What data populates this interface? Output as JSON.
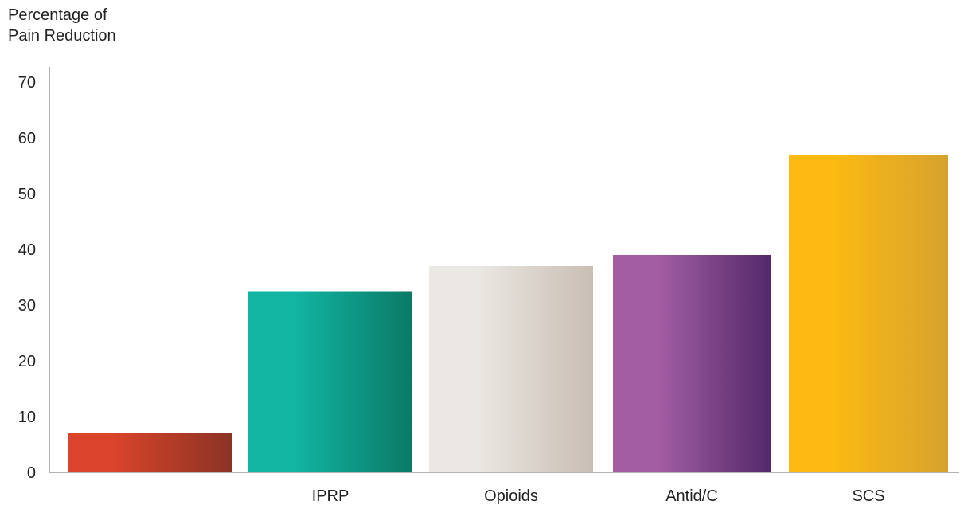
{
  "chart_data": {
    "type": "bar",
    "title": "",
    "ylabel": "Percentage of\nPain Reduction",
    "xlabel": "",
    "categories": [
      "",
      "IPRP",
      "Opioids",
      "Antid/C",
      "SCS"
    ],
    "values": [
      7,
      32.5,
      37,
      39,
      57
    ],
    "ylim": [
      0,
      70
    ],
    "yticks": [
      0,
      10,
      20,
      30,
      40,
      50,
      60,
      70
    ],
    "grid": false,
    "legend": "none",
    "bar_gradients": [
      [
        "#d9442a",
        "#8b3324"
      ],
      [
        "#12b4a2",
        "#0a7a66"
      ],
      [
        "#ebe8e3",
        "#c9beb4"
      ],
      [
        "#a35ea3",
        "#53296a"
      ],
      [
        "#fcba12",
        "#d6a22e"
      ]
    ]
  }
}
